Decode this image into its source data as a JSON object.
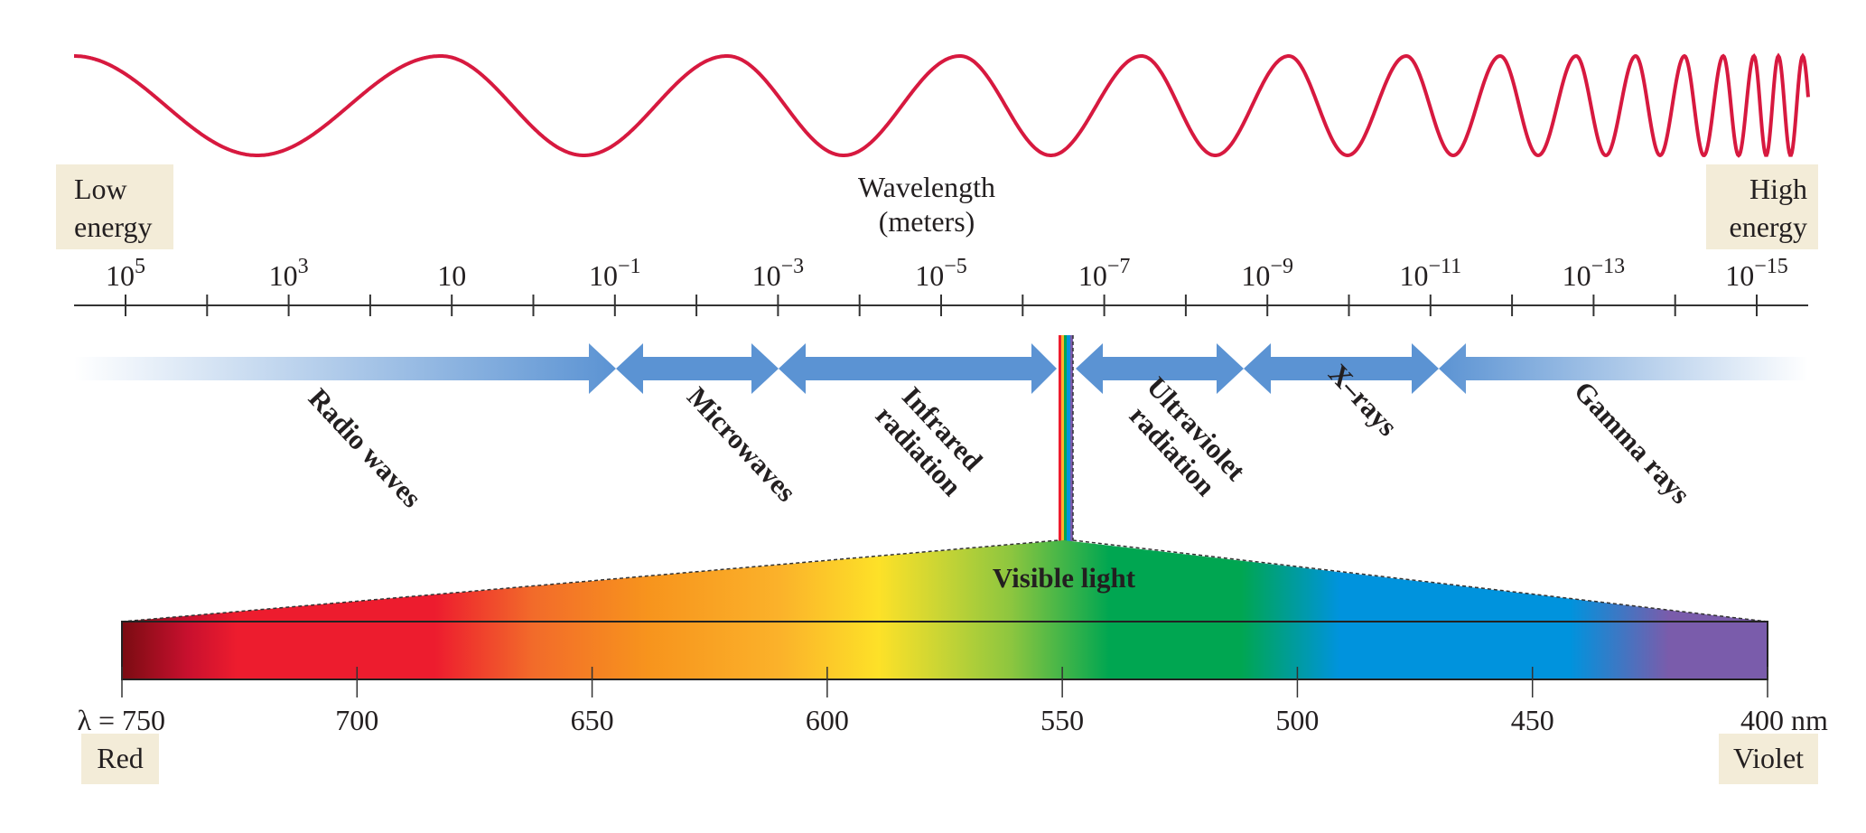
{
  "energy": {
    "low": [
      "Low",
      "energy"
    ],
    "high": [
      "High",
      "energy"
    ]
  },
  "axis_title": [
    "Wavelength",
    "(meters)"
  ],
  "axis_labels": [
    {
      "base": "10",
      "exp": "5"
    },
    {
      "base": "10",
      "exp": "3"
    },
    {
      "base": "10",
      "exp": ""
    },
    {
      "base": "10",
      "exp": "−1"
    },
    {
      "base": "10",
      "exp": "−3"
    },
    {
      "base": "10",
      "exp": "−5"
    },
    {
      "base": "10",
      "exp": "−7"
    },
    {
      "base": "10",
      "exp": "−9"
    },
    {
      "base": "10",
      "exp": "−11"
    },
    {
      "base": "10",
      "exp": "−13"
    },
    {
      "base": "10",
      "exp": "−15"
    }
  ],
  "bands": [
    {
      "lines": [
        "Radio waves"
      ]
    },
    {
      "lines": [
        "Microwaves"
      ]
    },
    {
      "lines": [
        "Infrared",
        "radiation"
      ]
    },
    {
      "lines": [
        "Ultraviolet",
        "radiation"
      ]
    },
    {
      "lines": [
        "X–rays"
      ]
    },
    {
      "lines": [
        "Gamma rays"
      ]
    }
  ],
  "visible_label": "Visible light",
  "nm_labels": [
    "λ = 750",
    "700",
    "650",
    "600",
    "550",
    "500",
    "450",
    "400 nm"
  ],
  "color_ends": {
    "red": "Red",
    "violet": "Violet"
  },
  "colors": {
    "wave": "#d7193f",
    "arrow": "#5b93d3",
    "box": "#f3ecd8"
  }
}
